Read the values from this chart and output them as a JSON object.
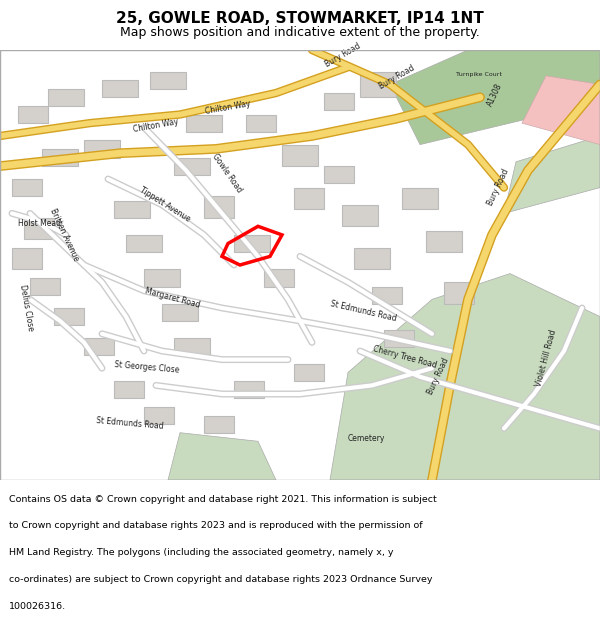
{
  "title_line1": "25, GOWLE ROAD, STOWMARKET, IP14 1NT",
  "title_line2": "Map shows position and indicative extent of the property.",
  "footer_lines": [
    "Contains OS data © Crown copyright and database right 2021. This information is subject",
    "to Crown copyright and database rights 2023 and is reproduced with the permission of",
    "HM Land Registry. The polygons (including the associated geometry, namely x, y",
    "co-ordinates) are subject to Crown copyright and database rights 2023 Ordnance Survey",
    "100026316."
  ],
  "map_bg": "#f0ede8",
  "road_color": "#ffffff",
  "road_outline": "#cccccc",
  "building_color": "#d4d0cb",
  "building_outline": "#bbbbbb",
  "green_area": "#c8dbbf",
  "green_dark": "#a8c89a",
  "highlight_color": "#ff0000",
  "yellow_road": "#f5d76e",
  "yellow_outline": "#d4a020",
  "pink_area": "#f5c0c0",
  "header_bg": "#ffffff",
  "footer_bg": "#ffffff",
  "map_border": "#aaaaaa"
}
